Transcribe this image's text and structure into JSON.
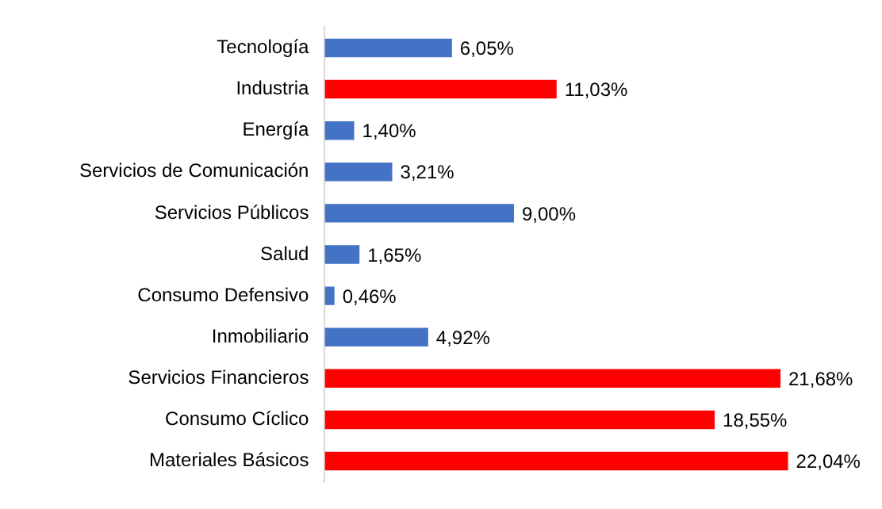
{
  "chart_data": {
    "type": "bar",
    "orientation": "horizontal",
    "categories": [
      "Tecnología",
      "Industria",
      "Energía",
      "Servicios de Comunicación",
      "Servicios Públicos",
      "Salud",
      "Consumo Defensivo",
      "Inmobiliario",
      "Servicios Financieros",
      "Consumo Cíclico",
      "Materiales Básicos"
    ],
    "values": [
      6.05,
      11.03,
      1.4,
      3.21,
      9.0,
      1.65,
      0.46,
      4.92,
      21.68,
      18.55,
      22.04
    ],
    "colors": [
      "#4472c4",
      "#ff0000",
      "#4472c4",
      "#4472c4",
      "#4472c4",
      "#4472c4",
      "#4472c4",
      "#4472c4",
      "#ff0000",
      "#ff0000",
      "#ff0000"
    ],
    "value_labels": [
      "6,05%",
      "11,03%",
      "1,40%",
      "3,21%",
      "9,00%",
      "1,65%",
      "0,46%",
      "4,92%",
      "21,68%",
      "18,55%",
      "22,04%"
    ],
    "grid": false,
    "legend": false
  }
}
